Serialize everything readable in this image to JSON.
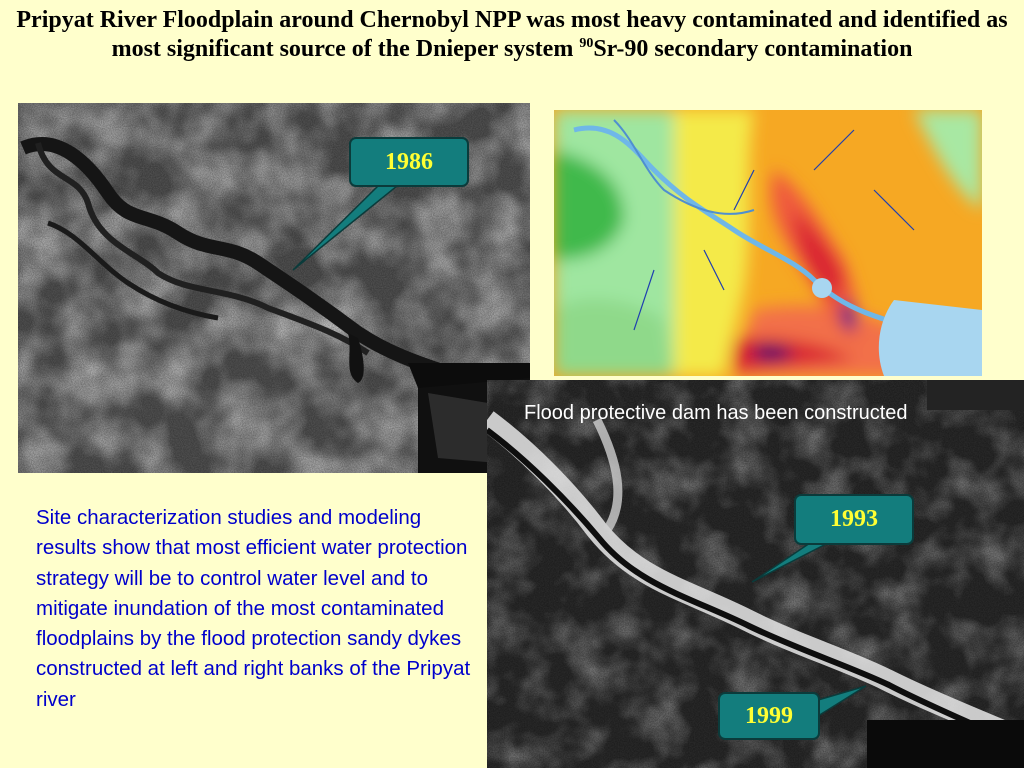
{
  "slide": {
    "title_part1": "Pripyat River Floodplain around Chernobyl NPP was most heavy contaminated and identified as most significant source of the Dnieper system ",
    "title_sup": "90",
    "title_part2": "Sr-90 secondary contamination"
  },
  "callouts": {
    "year_1986": "1986",
    "year_1993": "1993",
    "year_1999": "1999"
  },
  "caption": "Flood protective dam has been constructed",
  "body_text": "Site characterization studies and modeling results show that most efficient water protection strategy will be to control water level and to mitigate inundation of the most contaminated floodplains by the flood protection sandy dykes constructed at left and right banks of the Pripyat river",
  "colors": {
    "background": "#ffffcc",
    "callout_fill": "#137d7d",
    "callout_text": "#ffff33",
    "body_text": "#0000cc"
  }
}
